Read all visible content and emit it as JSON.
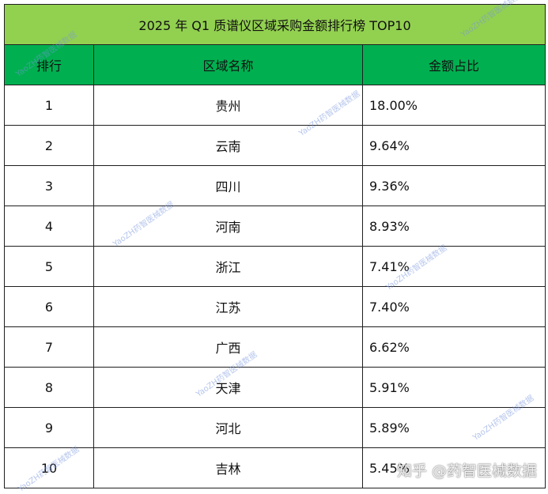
{
  "table": {
    "title": "2025 年 Q1 质谱仪区域采购金额排行榜 TOP10",
    "headers": [
      "排行",
      "区域名称",
      "金额占比"
    ],
    "rows": [
      {
        "rank": "1",
        "region": "贵州",
        "share": "18.00%"
      },
      {
        "rank": "2",
        "region": "云南",
        "share": "9.64%"
      },
      {
        "rank": "3",
        "region": "四川",
        "share": "9.36%"
      },
      {
        "rank": "4",
        "region": "河南",
        "share": "8.93%"
      },
      {
        "rank": "5",
        "region": "浙江",
        "share": "7.41%"
      },
      {
        "rank": "6",
        "region": "江苏",
        "share": "7.40%"
      },
      {
        "rank": "7",
        "region": "广西",
        "share": "6.62%"
      },
      {
        "rank": "8",
        "region": "天津",
        "share": "5.91%"
      },
      {
        "rank": "9",
        "region": "河北",
        "share": "5.89%"
      },
      {
        "rank": "10",
        "region": "吉林",
        "share": "5.45%"
      }
    ]
  },
  "watermark": {
    "text": "YaoZH药智医械数据",
    "zhihu": "知乎 @药智医械数据"
  },
  "colors": {
    "title_bg": "#92d050",
    "header_bg": "#00b050",
    "border": "#1f1f1f"
  }
}
